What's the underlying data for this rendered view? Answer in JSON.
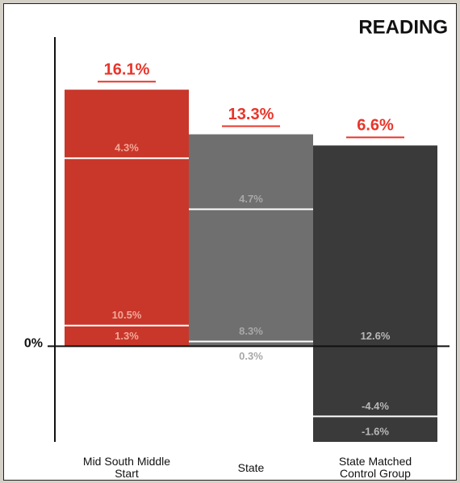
{
  "chart_data": {
    "type": "stacked_bar",
    "title": "READING",
    "categories": [
      "Mid South Middle Start",
      "State",
      "State Matched Control Group"
    ],
    "colors": [
      "#c8372a",
      "#6f6f6f",
      "#3a3a3a"
    ],
    "label_colors": [
      "#f2a89a",
      "#a8a8a8",
      "#b8b8b8"
    ],
    "series": [
      {
        "values": [
          1.3,
          0.3,
          12.6
        ],
        "value_labels": [
          "1.3%",
          "0.3%",
          "12.6%"
        ]
      },
      {
        "values": [
          10.5,
          8.3,
          -4.4
        ],
        "value_labels": [
          "10.5%",
          "8.3%",
          "-4.4%"
        ]
      },
      {
        "values": [
          4.3,
          4.7,
          -1.6
        ],
        "value_labels": [
          "4.3%",
          "4.7%",
          "-1.6%"
        ]
      }
    ],
    "totals": [
      16.1,
      13.3,
      6.6
    ],
    "total_labels": [
      "16.1%",
      "13.3%",
      "6.6%"
    ],
    "total_color": "#e8352a",
    "ylim": [
      -6.0,
      19.4
    ],
    "yticks": [
      {
        "value": 0,
        "label": "0%"
      }
    ]
  }
}
